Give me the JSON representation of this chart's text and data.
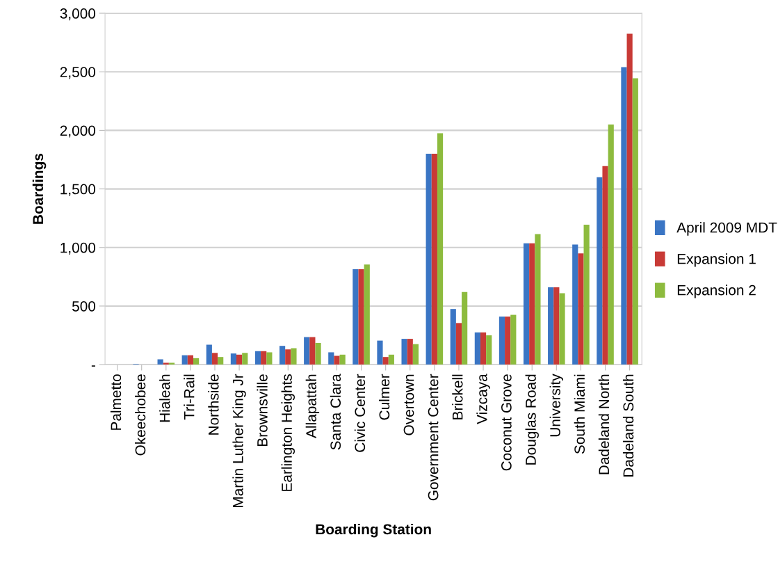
{
  "chart_data": {
    "type": "bar",
    "xlabel": "Boarding Station",
    "ylabel": "Boardings",
    "categories": [
      "Palmetto",
      "Okeechobee",
      "Hialeah",
      "Tri-Rail",
      "Northside",
      "Martin Luther King Jr",
      "Brownsville",
      "Earlington Heights",
      "Allapattah",
      "Santa Clara",
      "Civic Center",
      "Culmer",
      "Overtown",
      "Government Center",
      "Brickell",
      "Vizcaya",
      "Coconut Grove",
      "Douglas Road",
      "University",
      "South Miami",
      "Dadeland North",
      "Dadeland South"
    ],
    "series": [
      {
        "name": "April 2009 MDT",
        "color": "#3a75c4",
        "values": [
          0,
          5,
          45,
          80,
          170,
          95,
          115,
          160,
          235,
          105,
          815,
          205,
          220,
          1800,
          475,
          275,
          410,
          1035,
          660,
          1025,
          1600,
          2540
        ]
      },
      {
        "name": "Expansion 1",
        "color": "#c83a36",
        "values": [
          0,
          0,
          15,
          80,
          100,
          85,
          115,
          130,
          235,
          75,
          815,
          65,
          220,
          1800,
          355,
          275,
          410,
          1035,
          660,
          950,
          1695,
          2825
        ]
      },
      {
        "name": "Expansion 2",
        "color": "#8dbb3e",
        "values": [
          0,
          0,
          15,
          55,
          65,
          100,
          105,
          140,
          185,
          85,
          855,
          85,
          175,
          1975,
          620,
          250,
          425,
          1115,
          610,
          1195,
          2050,
          2445
        ]
      }
    ],
    "ylim": [
      0,
      3000
    ],
    "yticks": [
      {
        "value": 0,
        "label": "-"
      },
      {
        "value": 500,
        "label": "500"
      },
      {
        "value": 1000,
        "label": "1,000"
      },
      {
        "value": 1500,
        "label": "1,500"
      },
      {
        "value": 2000,
        "label": "2,000"
      },
      {
        "value": 2500,
        "label": "2,500"
      },
      {
        "value": 3000,
        "label": "3,000"
      }
    ],
    "grid": "y",
    "legend": "right"
  }
}
